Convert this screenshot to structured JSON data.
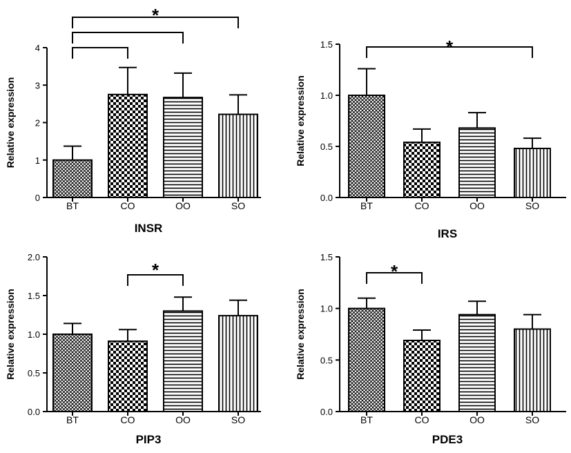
{
  "chart_data": [
    {
      "type": "bar",
      "title": "INSR",
      "ylabel": "Relative expression",
      "xlabel": "",
      "categories": [
        "BT",
        "CO",
        "OO",
        "SO"
      ],
      "values": [
        1.0,
        2.75,
        2.67,
        2.22
      ],
      "errors": [
        0.37,
        0.72,
        0.65,
        0.52
      ],
      "ylim": [
        0,
        4
      ],
      "yticks": [
        "0",
        "1",
        "2",
        "3",
        "4"
      ],
      "patterns": [
        "crosshatch",
        "checker",
        "horizontal",
        "vertical"
      ],
      "significance": [
        {
          "from": "BT",
          "to": "CO",
          "label": ""
        },
        {
          "from": "BT",
          "to": "OO",
          "label": ""
        },
        {
          "from": "BT",
          "to": "SO",
          "label": "*"
        }
      ]
    },
    {
      "type": "bar",
      "title": "IRS",
      "ylabel": "Relative expression",
      "xlabel": "",
      "categories": [
        "BT",
        "CO",
        "OO",
        "SO"
      ],
      "values": [
        1.0,
        0.54,
        0.68,
        0.48
      ],
      "errors": [
        0.26,
        0.13,
        0.15,
        0.1
      ],
      "ylim": [
        0,
        1.5
      ],
      "yticks": [
        "0.0",
        "0.5",
        "1.0",
        "1.5"
      ],
      "patterns": [
        "crosshatch",
        "checker",
        "horizontal",
        "vertical"
      ],
      "significance": [
        {
          "from": "BT",
          "to": "SO",
          "label": "*"
        }
      ]
    },
    {
      "type": "bar",
      "title": "PIP3",
      "ylabel": "Relative expression",
      "xlabel": "",
      "categories": [
        "BT",
        "CO",
        "OO",
        "SO"
      ],
      "values": [
        1.0,
        0.91,
        1.3,
        1.24
      ],
      "errors": [
        0.14,
        0.15,
        0.18,
        0.2
      ],
      "ylim": [
        0,
        2.0
      ],
      "yticks": [
        "0.0",
        "0.5",
        "1.0",
        "1.5",
        "2.0"
      ],
      "patterns": [
        "crosshatch",
        "checker",
        "horizontal",
        "vertical"
      ],
      "significance": [
        {
          "from": "CO",
          "to": "OO",
          "label": "*"
        }
      ]
    },
    {
      "type": "bar",
      "title": "PDE3",
      "ylabel": "Relative expression",
      "xlabel": "",
      "categories": [
        "BT",
        "CO",
        "OO",
        "SO"
      ],
      "values": [
        1.0,
        0.69,
        0.94,
        0.8
      ],
      "errors": [
        0.1,
        0.1,
        0.13,
        0.14
      ],
      "ylim": [
        0,
        1.5
      ],
      "yticks": [
        "0.0",
        "0.5",
        "1.0",
        "1.5"
      ],
      "patterns": [
        "crosshatch",
        "checker",
        "horizontal",
        "vertical"
      ],
      "significance": [
        {
          "from": "BT",
          "to": "CO",
          "label": "*"
        }
      ]
    }
  ]
}
